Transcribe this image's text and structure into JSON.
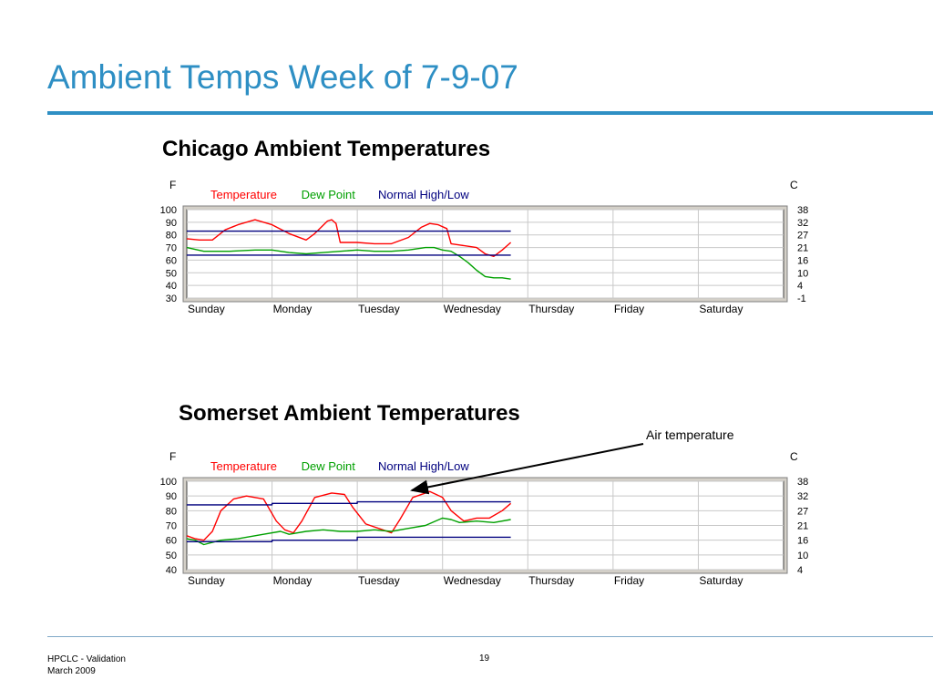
{
  "slide": {
    "title": "Ambient Temps Week of 7-9-07",
    "annotation": "Air temperature",
    "footer": {
      "line1": "HPCLC - Validation",
      "line2": "March  2009",
      "page": "19"
    }
  },
  "colors": {
    "accent": "#2e8fc4",
    "temperature": "#ff0000",
    "dew_point": "#00a000",
    "normal": "#00007f"
  },
  "chart_data": [
    {
      "type": "line",
      "title": "Chicago Ambient Temperatures",
      "left_axis_label": "F",
      "right_axis_label": "C",
      "categories": [
        "Sunday",
        "Monday",
        "Tuesday",
        "Wednesday",
        "Thursday",
        "Friday",
        "Saturday"
      ],
      "yticks": [
        100,
        90,
        80,
        70,
        60,
        50,
        40,
        30
      ],
      "yticks_right": [
        "38",
        "32",
        "27",
        "21",
        "16",
        "10",
        "4",
        "-1"
      ],
      "ylim": [
        30,
        100
      ],
      "xlim": [
        0,
        7
      ],
      "grid": true,
      "legend_position": "top-left",
      "series": [
        {
          "name": "Temperature",
          "color": "#ff0000",
          "x": [
            0,
            0.15,
            0.3,
            0.45,
            0.6,
            0.8,
            1.0,
            1.2,
            1.4,
            1.5,
            1.65,
            1.7,
            1.75,
            1.8,
            2.0,
            2.2,
            2.4,
            2.6,
            2.75,
            2.85,
            2.95,
            3.05,
            3.1,
            3.2,
            3.4,
            3.5,
            3.6,
            3.7,
            3.8
          ],
          "y": [
            77,
            76,
            76,
            84,
            88,
            92,
            88,
            81,
            76,
            81,
            91,
            92,
            89,
            74,
            74,
            73,
            73,
            78,
            86,
            89,
            88,
            85,
            73,
            72,
            70,
            65,
            63,
            68,
            74
          ]
        },
        {
          "name": "Dew Point",
          "color": "#00a000",
          "x": [
            0,
            0.2,
            0.5,
            0.8,
            1.0,
            1.2,
            1.4,
            1.6,
            1.8,
            2.0,
            2.2,
            2.4,
            2.6,
            2.8,
            2.9,
            3.0,
            3.1,
            3.2,
            3.3,
            3.4,
            3.5,
            3.6,
            3.7,
            3.8
          ],
          "y": [
            70,
            67,
            67,
            68,
            68,
            66,
            65,
            66,
            67,
            68,
            67,
            67,
            68,
            70,
            70,
            68,
            67,
            63,
            58,
            52,
            47,
            46,
            46,
            45
          ]
        },
        {
          "name": "Normal High/Low",
          "color": "#00007f",
          "x": [
            0,
            3.8
          ],
          "y": [
            83,
            83
          ]
        },
        {
          "name": "",
          "color": "#00007f",
          "x": [
            0,
            3.8
          ],
          "y": [
            64,
            64
          ]
        }
      ]
    },
    {
      "type": "line",
      "title": "Somerset Ambient Temperatures",
      "left_axis_label": "F",
      "right_axis_label": "C",
      "categories": [
        "Sunday",
        "Monday",
        "Tuesday",
        "Wednesday",
        "Thursday",
        "Friday",
        "Saturday"
      ],
      "yticks": [
        100,
        90,
        80,
        70,
        60,
        50,
        40
      ],
      "yticks_right": [
        "38",
        "32",
        "27",
        "21",
        "16",
        "10",
        "4"
      ],
      "ylim": [
        40,
        100
      ],
      "xlim": [
        0,
        7
      ],
      "grid": true,
      "legend_position": "top-left",
      "series": [
        {
          "name": "Temperature",
          "color": "#ff0000",
          "x": [
            0,
            0.1,
            0.2,
            0.3,
            0.4,
            0.55,
            0.7,
            0.9,
            1.05,
            1.15,
            1.25,
            1.35,
            1.5,
            1.7,
            1.85,
            1.95,
            2.1,
            2.3,
            2.4,
            2.5,
            2.65,
            2.85,
            3.0,
            3.1,
            3.25,
            3.4,
            3.55,
            3.7,
            3.8
          ],
          "y": [
            63,
            61,
            60,
            66,
            80,
            88,
            90,
            88,
            73,
            67,
            65,
            73,
            89,
            92,
            91,
            82,
            71,
            67,
            65,
            74,
            89,
            93,
            89,
            80,
            73,
            75,
            75,
            80,
            85
          ]
        },
        {
          "name": "Dew Point",
          "color": "#00a000",
          "x": [
            0,
            0.1,
            0.2,
            0.4,
            0.6,
            0.9,
            1.1,
            1.2,
            1.4,
            1.6,
            1.8,
            2.0,
            2.2,
            2.4,
            2.6,
            2.8,
            3.0,
            3.1,
            3.2,
            3.4,
            3.6,
            3.8
          ],
          "y": [
            61,
            60,
            57,
            60,
            61,
            64,
            66,
            64,
            66,
            67,
            66,
            66,
            67,
            66,
            68,
            70,
            75,
            74,
            72,
            73,
            72,
            74
          ]
        },
        {
          "name": "Normal High/Low",
          "color": "#00007f",
          "x": [
            0,
            1.0,
            1.0,
            2.0,
            2.0,
            3.8
          ],
          "y": [
            84,
            84,
            85,
            85,
            86,
            86
          ]
        },
        {
          "name": "",
          "color": "#00007f",
          "x": [
            0,
            1.0,
            1.0,
            2.0,
            2.0,
            3.8
          ],
          "y": [
            59,
            59,
            60,
            60,
            62,
            62
          ]
        }
      ]
    }
  ]
}
